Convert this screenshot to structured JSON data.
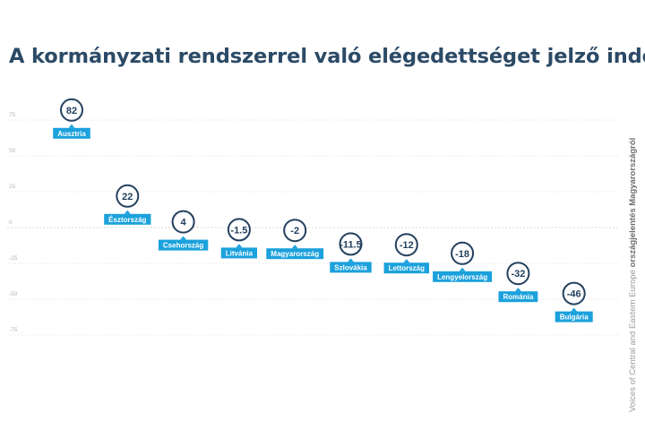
{
  "title": "A kormányzati rendszerrel való elégedettséget jelző index",
  "source": {
    "prefix": "Voices of Central and Eastern Europe ",
    "bold": "országjelentés Magyarországról"
  },
  "colors": {
    "title": "#2b4a66",
    "label_bg": "#1ba1dc",
    "circle_stroke": "#23405e",
    "grid": "#d9d9d9",
    "axis_text": "#b3b3b3"
  },
  "chart_data": {
    "type": "scatter",
    "title": "A kormányzati rendszerrel való elégedettséget jelző index",
    "xlabel": "",
    "ylabel": "",
    "ylim": [
      -75,
      75
    ],
    "yticks": [
      75,
      50,
      25,
      0,
      -25,
      -50,
      -75
    ],
    "categories": [
      "Ausztria",
      "Észtország",
      "Csehország",
      "Litvánia",
      "Magyarország",
      "Szlovákia",
      "Lettország",
      "Lengyelország",
      "Románia",
      "Bulgária"
    ],
    "values": [
      82,
      22,
      4,
      -1.5,
      -2,
      -11.5,
      -12,
      -18,
      -32,
      -46
    ],
    "value_labels": [
      "82",
      "22",
      "4",
      "-1.5",
      "-2",
      "-11.5",
      "-12",
      "-18",
      "-32",
      "-46"
    ],
    "grid": true,
    "legend": "none"
  }
}
